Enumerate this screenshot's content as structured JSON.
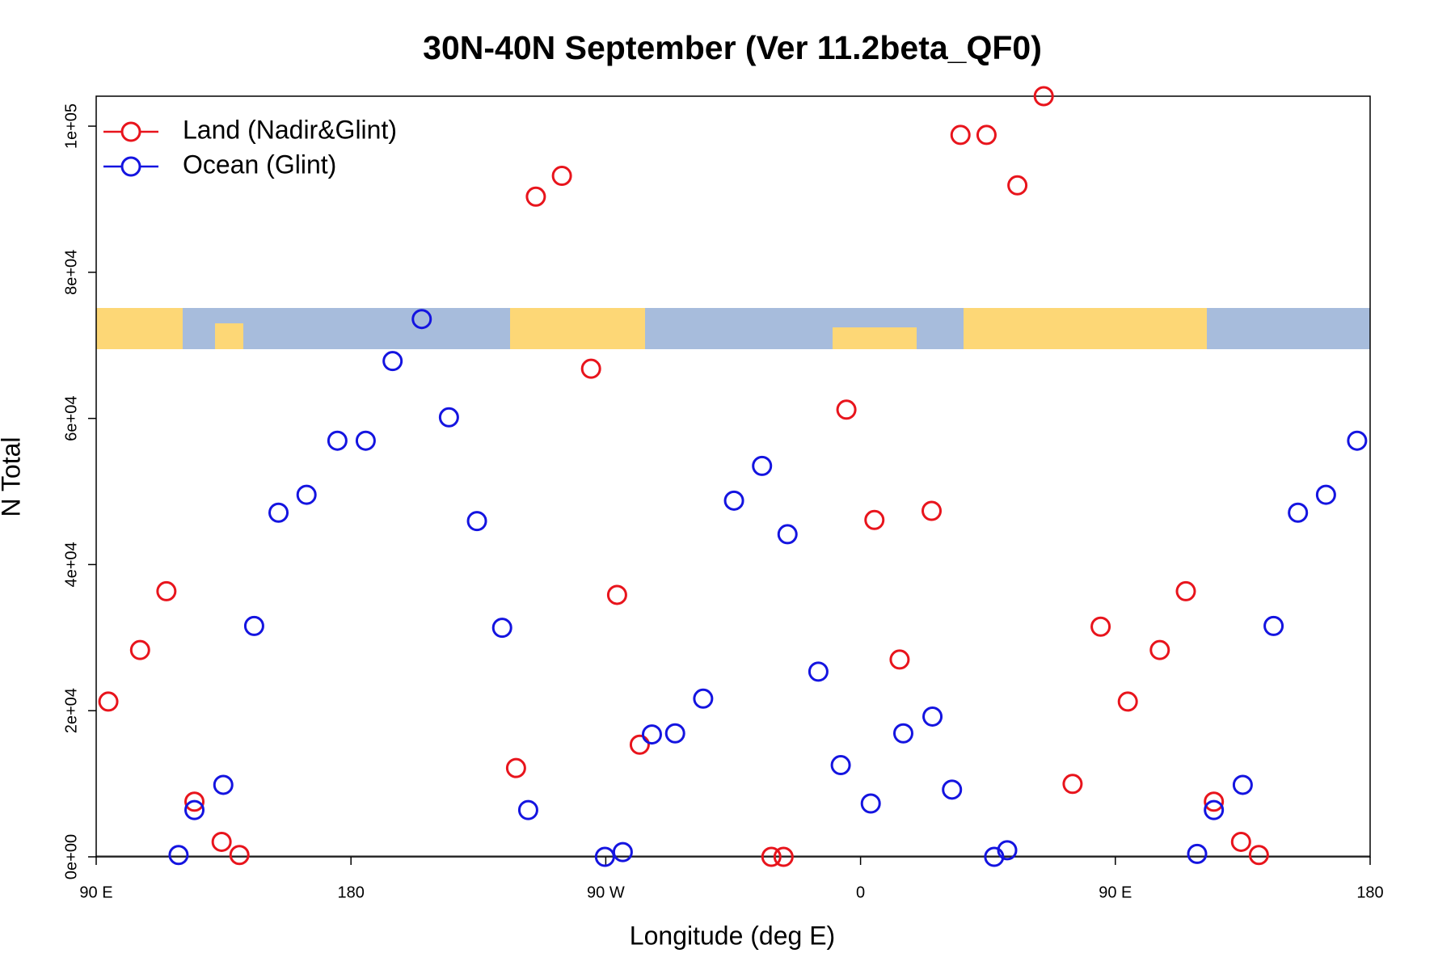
{
  "chart_data": {
    "type": "scatter",
    "title": "30N-40N September (Ver 11.2beta_QF0)",
    "x_label": "Longitude (deg E)",
    "y_label": "N Total",
    "xlim": [
      90,
      540
    ],
    "ylim": [
      0,
      104100
    ],
    "xticks": [
      {
        "value": 90,
        "label": "90 E"
      },
      180,
      {
        "value": 270,
        "label": "90 W"
      },
      {
        "value": 360,
        "label": "0"
      },
      {
        "value": 450,
        "label": "90 E"
      },
      {
        "value": 540,
        "label": "180"
      }
    ],
    "yticks": [
      {
        "value": 0,
        "label": "0e+00"
      },
      {
        "value": 20000,
        "label": "2e+04"
      },
      {
        "value": 40000,
        "label": "4e+04"
      },
      {
        "value": 60000,
        "label": "6e+04"
      },
      {
        "value": 80000,
        "label": "8e+04"
      },
      {
        "value": 100000,
        "label": "1e+05"
      }
    ],
    "legend": "top-left",
    "series": [
      {
        "name": "Land (Nadir&Glint)",
        "color": "#e8141c",
        "x": [
          94.3,
          105.5,
          114.8,
          124.7,
          134.3,
          140.6,
          238.3,
          245.3,
          254.5,
          264.8,
          274.0,
          282.0,
          328.5,
          332.8,
          355.0,
          364.9,
          373.8,
          385.1,
          395.3,
          404.5,
          415.4,
          424.7,
          434.9,
          444.8,
          454.4,
          465.7,
          474.9,
          484.8,
          494.4,
          500.7
        ],
        "values": [
          21250,
          28300,
          36350,
          7550,
          2050,
          250,
          12150,
          90350,
          93200,
          66800,
          35850,
          15350,
          0,
          0,
          61200,
          46100,
          27000,
          47350,
          98800,
          98800,
          91900,
          104100,
          9980,
          31500,
          21250,
          28300,
          36350,
          7550,
          2050,
          250
        ]
      },
      {
        "name": "Ocean (Glint)",
        "color": "#1414e0",
        "x": [
          119.1,
          124.7,
          134.9,
          145.8,
          154.4,
          164.3,
          175.2,
          185.2,
          194.7,
          205.0,
          214.6,
          224.5,
          233.4,
          242.6,
          269.7,
          276.0,
          286.3,
          294.5,
          304.4,
          315.3,
          325.2,
          334.2,
          345.1,
          353.0,
          363.6,
          375.1,
          385.4,
          392.3,
          407.2,
          411.8,
          478.9,
          484.8,
          495.0,
          505.9,
          514.5,
          524.4,
          535.4
        ],
        "values": [
          250,
          6400,
          9850,
          31600,
          47100,
          49550,
          56950,
          56950,
          67850,
          73600,
          60150,
          45950,
          31350,
          6400,
          0,
          650,
          16750,
          16900,
          21650,
          48750,
          53500,
          44150,
          25350,
          12550,
          7300,
          16900,
          19200,
          9200,
          0,
          900,
          400,
          6400,
          9850,
          31600,
          47100,
          49550,
          56950
        ]
      }
    ]
  }
}
